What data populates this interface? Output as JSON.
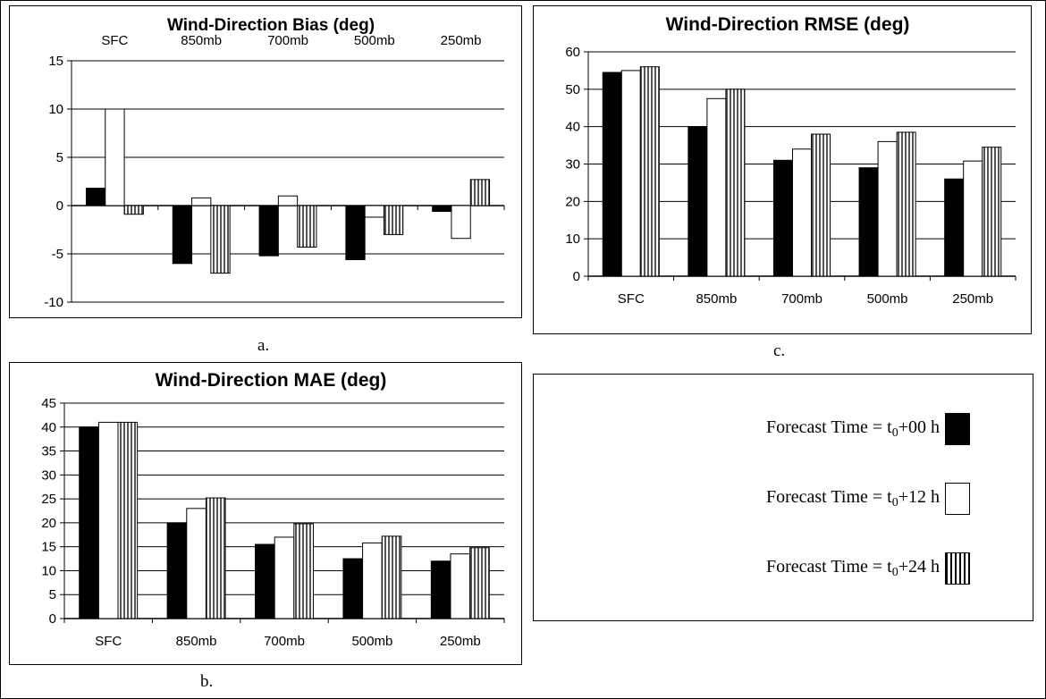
{
  "chart_data": [
    {
      "id": "a",
      "type": "bar",
      "title": "Wind-Direction Bias (deg)",
      "categories": [
        "SFC",
        "850mb",
        "700mb",
        "500mb",
        "250mb"
      ],
      "series": [
        {
          "name": "Forecast Time = t0+00 h",
          "values": [
            1.8,
            -6.0,
            -5.2,
            -5.6,
            -0.6
          ]
        },
        {
          "name": "Forecast Time = t0+12 h",
          "values": [
            10.0,
            0.8,
            1.0,
            -1.2,
            -3.4
          ]
        },
        {
          "name": "Forecast Time = t0+24 h",
          "values": [
            -0.9,
            -7.0,
            -4.3,
            -3.0,
            2.7
          ]
        }
      ],
      "ylim": [
        -10,
        15
      ],
      "yticks": [
        15,
        10,
        5,
        0,
        -5,
        -10
      ],
      "category_labels_position": "top",
      "grid": true,
      "caption": "a."
    },
    {
      "id": "b",
      "type": "bar",
      "title": "Wind-Direction MAE (deg)",
      "categories": [
        "SFC",
        "850mb",
        "700mb",
        "500mb",
        "250mb"
      ],
      "series": [
        {
          "name": "Forecast Time = t0+00 h",
          "values": [
            40.0,
            20.0,
            15.5,
            12.5,
            12.0
          ]
        },
        {
          "name": "Forecast Time = t0+12 h",
          "values": [
            41.0,
            23.0,
            17.0,
            15.8,
            13.5
          ]
        },
        {
          "name": "Forecast Time = t0+24 h",
          "values": [
            41.0,
            25.2,
            19.8,
            17.2,
            14.8
          ]
        }
      ],
      "ylim": [
        0,
        45
      ],
      "yticks": [
        45,
        40,
        35,
        30,
        25,
        20,
        15,
        10,
        5,
        0
      ],
      "category_labels_position": "bottom",
      "grid": true,
      "caption": "b."
    },
    {
      "id": "c",
      "type": "bar",
      "title": "Wind-Direction RMSE (deg)",
      "categories": [
        "SFC",
        "850mb",
        "700mb",
        "500mb",
        "250mb"
      ],
      "series": [
        {
          "name": "Forecast Time = t0+00 h",
          "values": [
            54.5,
            40.0,
            31.0,
            29.0,
            26.0
          ]
        },
        {
          "name": "Forecast Time = t0+12 h",
          "values": [
            55.0,
            47.5,
            34.0,
            36.0,
            30.8
          ]
        },
        {
          "name": "Forecast Time = t0+24 h",
          "values": [
            56.0,
            50.0,
            38.0,
            38.5,
            34.5
          ]
        }
      ],
      "ylim": [
        0,
        60
      ],
      "yticks": [
        60,
        50,
        40,
        30,
        20,
        10,
        0
      ],
      "category_labels_position": "bottom",
      "grid": true,
      "caption": "c."
    }
  ],
  "legend": {
    "items": [
      {
        "prefix": "Forecast Time = t",
        "sub": "0",
        "suffix": "+00 h",
        "style": "black"
      },
      {
        "prefix": "Forecast Time = t",
        "sub": "0",
        "suffix": "+12 h",
        "style": "white"
      },
      {
        "prefix": "Forecast Time = t",
        "sub": "0",
        "suffix": "+24 h",
        "style": "striped"
      }
    ]
  },
  "colors": {
    "series0": "#000000",
    "series1": "#ffffff",
    "stripe": "#555555"
  }
}
